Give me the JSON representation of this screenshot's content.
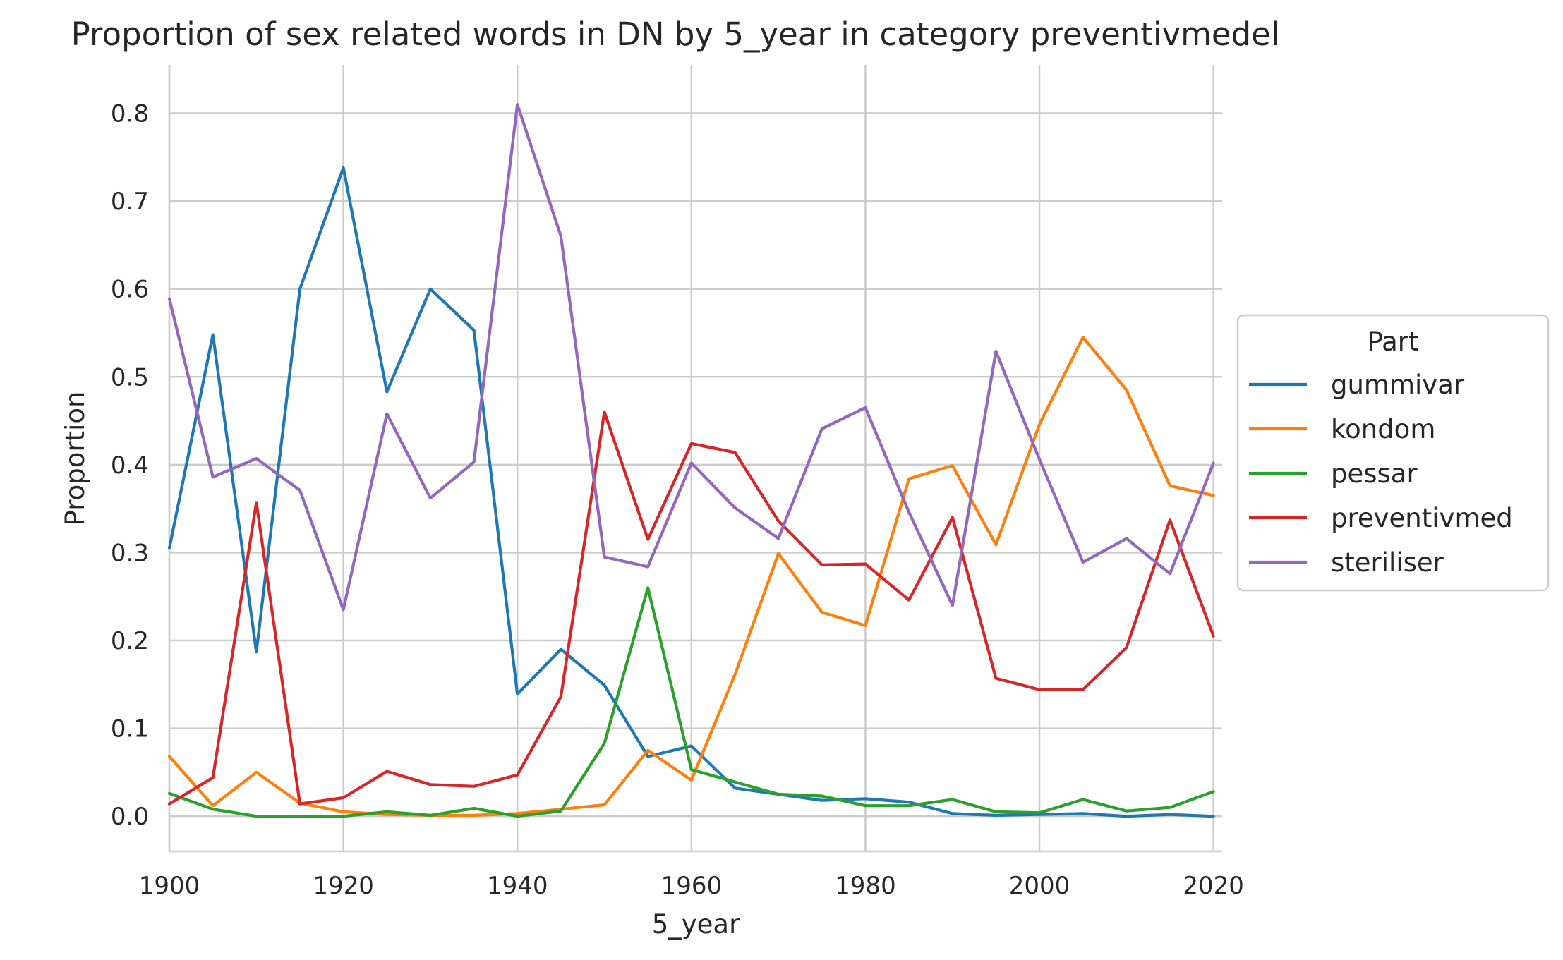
{
  "chart_data": {
    "type": "line",
    "title": "Proportion of sex related words in DN by 5_year in category preventivmedel",
    "xlabel": "5_year",
    "ylabel": "Proportion",
    "x": [
      1900,
      1905,
      1910,
      1915,
      1920,
      1925,
      1930,
      1935,
      1940,
      1945,
      1950,
      1955,
      1960,
      1965,
      1970,
      1975,
      1980,
      1985,
      1990,
      1995,
      2000,
      2005,
      2010,
      2015,
      2020
    ],
    "xlim": [
      1900,
      2021
    ],
    "ylim": [
      -0.04,
      0.855
    ],
    "xticks": [
      "1900",
      "1920",
      "1940",
      "1960",
      "1980",
      "2000",
      "2020"
    ],
    "yticks": [
      "0.0",
      "0.1",
      "0.2",
      "0.3",
      "0.4",
      "0.5",
      "0.6",
      "0.7",
      "0.8"
    ],
    "grid": true,
    "legend": {
      "title": "Part",
      "placement": "center-right-outside"
    },
    "series": [
      {
        "name": "gummivar",
        "color": "#1f77b4",
        "values": [
          0.305,
          0.548,
          0.187,
          0.6,
          0.738,
          0.483,
          0.6,
          0.553,
          0.139,
          0.19,
          0.149,
          0.068,
          0.08,
          0.032,
          0.025,
          0.018,
          0.02,
          0.016,
          0.003,
          0.001,
          0.002,
          0.003,
          0.0,
          0.002,
          0.0
        ]
      },
      {
        "name": "kondom",
        "color": "#ff7f0e",
        "values": [
          0.068,
          0.012,
          0.05,
          0.015,
          0.005,
          0.002,
          0.001,
          0.001,
          0.003,
          0.008,
          0.013,
          0.075,
          0.041,
          0.161,
          0.299,
          0.232,
          0.217,
          0.384,
          0.399,
          0.309,
          0.446,
          0.545,
          0.485,
          0.376,
          0.365
        ]
      },
      {
        "name": "pessar",
        "color": "#2ca02c",
        "values": [
          0.026,
          0.008,
          0.0,
          0.0,
          0.0,
          0.005,
          0.001,
          0.009,
          0.0,
          0.006,
          0.083,
          0.26,
          0.053,
          0.039,
          0.025,
          0.023,
          0.012,
          0.012,
          0.019,
          0.005,
          0.004,
          0.019,
          0.006,
          0.01,
          0.028
        ]
      },
      {
        "name": "preventivmed",
        "color": "#d62728",
        "values": [
          0.014,
          0.044,
          0.357,
          0.014,
          0.021,
          0.051,
          0.036,
          0.034,
          0.047,
          0.136,
          0.46,
          0.315,
          0.424,
          0.414,
          0.336,
          0.286,
          0.287,
          0.246,
          0.34,
          0.157,
          0.144,
          0.144,
          0.192,
          0.337,
          0.205
        ]
      },
      {
        "name": "steriliser",
        "color": "#9467bd",
        "values": [
          0.589,
          0.386,
          0.407,
          0.371,
          0.235,
          0.458,
          0.362,
          0.403,
          0.81,
          0.66,
          0.295,
          0.284,
          0.402,
          0.351,
          0.316,
          0.441,
          0.465,
          0.346,
          0.24,
          0.529,
          0.406,
          0.289,
          0.316,
          0.276,
          0.402
        ]
      }
    ]
  }
}
